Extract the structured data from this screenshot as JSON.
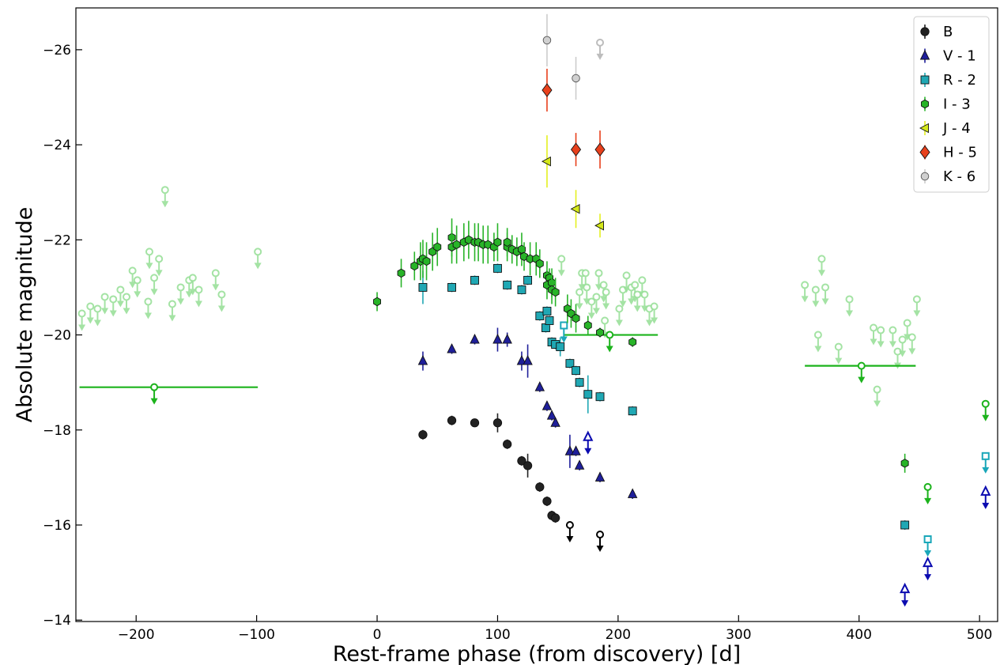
{
  "chart_data": {
    "type": "scatter",
    "title": "",
    "xlabel": "Rest-frame phase (from discovery) [d]",
    "ylabel": "Absolute magnitude",
    "xlim": [
      -250,
      515
    ],
    "ylim": [
      -13.97,
      -26.88
    ],
    "y_inverted": true,
    "xticks": [
      -200,
      -100,
      0,
      100,
      200,
      300,
      400,
      500
    ],
    "yticks": [
      -14,
      -16,
      -18,
      -20,
      -22,
      -24,
      -26
    ],
    "xtick_labels": [
      "−200",
      "−100",
      "0",
      "100",
      "200",
      "300",
      "400",
      "500"
    ],
    "ytick_labels": [
      "−14",
      "−16",
      "−18",
      "−20",
      "−22",
      "−24",
      "−26"
    ],
    "grid": false,
    "legend_position": "top-right",
    "colors": {
      "B": "#222222",
      "V": "#1f1f9a",
      "R": "#20a8b4",
      "I": "#28b428",
      "J": "#d4e81a",
      "H": "#e8401c",
      "K": "#bdbdbd",
      "I_limit_faint": "#9be09b",
      "I_limit": "#1cb31c",
      "R_limit": "#1aa7b9",
      "V_limit": "#0b0bb0",
      "B_limit": "#000000"
    },
    "series": [
      {
        "name": "B",
        "marker": "circle",
        "points": [
          [
            38,
            -17.9,
            0.1
          ],
          [
            62,
            -18.2,
            0.1
          ],
          [
            81,
            -18.15,
            0.05
          ],
          [
            100,
            -18.15,
            0.2
          ],
          [
            108,
            -17.7,
            0.1
          ],
          [
            120,
            -17.35,
            0.1
          ],
          [
            125,
            -17.25,
            0.25
          ],
          [
            135,
            -16.8,
            0.1
          ],
          [
            141,
            -16.5,
            0.1
          ],
          [
            145,
            -16.2,
            0.1
          ],
          [
            148,
            -16.15,
            0.1
          ]
        ]
      },
      {
        "name": "V - 1",
        "marker": "triangle",
        "points": [
          [
            38,
            -19.45,
            0.2
          ],
          [
            62,
            -19.7,
            0.1
          ],
          [
            81,
            -19.9,
            0.1
          ],
          [
            100,
            -19.9,
            0.25
          ],
          [
            108,
            -19.9,
            0.15
          ],
          [
            120,
            -19.45,
            0.2
          ],
          [
            125,
            -19.45,
            0.35
          ],
          [
            135,
            -18.9,
            0.1
          ],
          [
            141,
            -18.5,
            0.1
          ],
          [
            145,
            -18.3,
            0.1
          ],
          [
            148,
            -18.15,
            0.1
          ],
          [
            160,
            -17.55,
            0.35
          ],
          [
            165,
            -17.55,
            0.1
          ],
          [
            168,
            -17.25,
            0.1
          ],
          [
            185,
            -17.0,
            0.1
          ],
          [
            212,
            -16.65,
            0.1
          ]
        ]
      },
      {
        "name": "R - 2",
        "marker": "square",
        "points": [
          [
            38,
            -21.0,
            0.35
          ],
          [
            62,
            -21.0,
            0.1
          ],
          [
            81,
            -21.15,
            0.1
          ],
          [
            100,
            -21.4,
            0.1
          ],
          [
            108,
            -21.05,
            0.1
          ],
          [
            120,
            -20.95,
            0.1
          ],
          [
            125,
            -21.15,
            0.1
          ],
          [
            135,
            -20.4,
            0.1
          ],
          [
            140,
            -20.15,
            0.1
          ],
          [
            141,
            -20.5,
            0.1
          ],
          [
            143,
            -20.3,
            0.1
          ],
          [
            145,
            -19.85,
            0.1
          ],
          [
            148,
            -19.8,
            0.1
          ],
          [
            152,
            -19.75,
            0.2
          ],
          [
            160,
            -19.4,
            0.1
          ],
          [
            165,
            -19.25,
            0.1
          ],
          [
            168,
            -19.0,
            0.1
          ],
          [
            175,
            -18.75,
            0.4
          ],
          [
            185,
            -18.7,
            0.1
          ],
          [
            212,
            -18.4,
            0.1
          ],
          [
            438,
            -16.0,
            0.1
          ]
        ]
      },
      {
        "name": "I - 3",
        "marker": "hexagon",
        "points": [
          [
            0,
            -20.7,
            0.2
          ],
          [
            20,
            -21.3,
            0.3
          ],
          [
            31,
            -21.45,
            0.3
          ],
          [
            36,
            -21.55,
            0.4
          ],
          [
            38,
            -21.6,
            0.4
          ],
          [
            41,
            -21.55,
            0.4
          ],
          [
            46,
            -21.75,
            0.4
          ],
          [
            50,
            -21.85,
            0.4
          ],
          [
            62,
            -22.05,
            0.4
          ],
          [
            62,
            -21.85,
            0.35
          ],
          [
            66,
            -21.9,
            0.4
          ],
          [
            72,
            -21.95,
            0.4
          ],
          [
            76,
            -22.0,
            0.4
          ],
          [
            81,
            -21.95,
            0.4
          ],
          [
            84,
            -21.95,
            0.4
          ],
          [
            88,
            -21.9,
            0.4
          ],
          [
            92,
            -21.9,
            0.4
          ],
          [
            97,
            -21.85,
            0.3
          ],
          [
            100,
            -21.95,
            0.4
          ],
          [
            108,
            -21.85,
            0.3
          ],
          [
            108,
            -21.95,
            0.3
          ],
          [
            112,
            -21.8,
            0.3
          ],
          [
            116,
            -21.75,
            0.3
          ],
          [
            120,
            -21.8,
            0.35
          ],
          [
            122,
            -21.65,
            0.3
          ],
          [
            127,
            -21.6,
            0.35
          ],
          [
            132,
            -21.6,
            0.35
          ],
          [
            135,
            -21.5,
            0.3
          ],
          [
            141,
            -21.25,
            0.3
          ],
          [
            141,
            -21.05,
            0.3
          ],
          [
            143,
            -21.2,
            0.2
          ],
          [
            145,
            -21.1,
            0.3
          ],
          [
            145,
            -20.95,
            0.3
          ],
          [
            148,
            -20.9,
            0.3
          ],
          [
            158,
            -20.55,
            0.3
          ],
          [
            161,
            -20.45,
            0.3
          ],
          [
            165,
            -20.35,
            0.3
          ],
          [
            175,
            -20.2,
            0.2
          ],
          [
            185,
            -20.05,
            0.1
          ],
          [
            212,
            -19.85,
            0.1
          ],
          [
            438,
            -17.3,
            0.2
          ]
        ]
      },
      {
        "name": "J - 4",
        "marker": "triangle-left",
        "points": [
          [
            141,
            -23.65,
            0.55
          ],
          [
            165,
            -22.65,
            0.4
          ],
          [
            185,
            -22.3,
            0.25
          ]
        ]
      },
      {
        "name": "H - 5",
        "marker": "diamond",
        "points": [
          [
            141,
            -25.15,
            0.45
          ],
          [
            165,
            -23.9,
            0.35
          ],
          [
            185,
            -23.9,
            0.4
          ]
        ]
      },
      {
        "name": "K - 6",
        "marker": "circle-small",
        "points": [
          [
            141,
            -26.2,
            0.55
          ],
          [
            165,
            -25.4,
            0.45
          ]
        ]
      }
    ],
    "upper_limits": [
      {
        "band": "I",
        "style": "faint",
        "points": [
          [
            -245,
            -20.45
          ],
          [
            -238,
            -20.6
          ],
          [
            -232,
            -20.55
          ],
          [
            -226,
            -20.8
          ],
          [
            -219,
            -20.75
          ],
          [
            -213,
            -20.95
          ],
          [
            -208,
            -20.8
          ],
          [
            -203,
            -21.35
          ],
          [
            -199,
            -21.15
          ],
          [
            -190,
            -20.7
          ],
          [
            -189,
            -21.75
          ],
          [
            -185,
            -21.2
          ],
          [
            -181,
            -21.6
          ],
          [
            -176,
            -23.05
          ],
          [
            -170,
            -20.65
          ],
          [
            -163,
            -21.0
          ],
          [
            -156,
            -21.15
          ],
          [
            -153,
            -21.2
          ],
          [
            -148,
            -20.95
          ],
          [
            -134,
            -21.3
          ],
          [
            -129,
            -20.85
          ],
          [
            -99,
            -21.75
          ],
          [
            153,
            -21.6
          ],
          [
            168,
            -20.9
          ],
          [
            170,
            -21.3
          ],
          [
            173,
            -21.3
          ],
          [
            174,
            -21.0
          ],
          [
            178,
            -20.7
          ],
          [
            182,
            -20.8
          ],
          [
            184,
            -21.3
          ],
          [
            188,
            -21.05
          ],
          [
            189,
            -20.3
          ],
          [
            190,
            -20.9
          ],
          [
            201,
            -20.55
          ],
          [
            204,
            -20.95
          ],
          [
            207,
            -21.25
          ],
          [
            211,
            -21.0
          ],
          [
            214,
            -21.05
          ],
          [
            216,
            -20.85
          ],
          [
            220,
            -21.15
          ],
          [
            222,
            -20.85
          ],
          [
            226,
            -20.55
          ],
          [
            230,
            -20.6
          ],
          [
            355,
            -21.05
          ],
          [
            364,
            -20.95
          ],
          [
            366,
            -20.0
          ],
          [
            369,
            -21.6
          ],
          [
            372,
            -21.0
          ],
          [
            383,
            -19.75
          ],
          [
            392,
            -20.75
          ],
          [
            412,
            -20.15
          ],
          [
            415,
            -18.85
          ],
          [
            418,
            -20.1
          ],
          [
            428,
            -20.1
          ],
          [
            432,
            -19.65
          ],
          [
            436,
            -19.9
          ],
          [
            440,
            -20.25
          ],
          [
            444,
            -19.95
          ],
          [
            448,
            -20.75
          ]
        ]
      },
      {
        "band": "I",
        "style": "binned",
        "points": [
          [
            -185,
            -18.9,
            -247,
            -99
          ],
          [
            193,
            -20.0,
            155,
            233
          ],
          [
            402,
            -19.35,
            355,
            447
          ]
        ]
      },
      {
        "band": "I",
        "style": "solid",
        "points": [
          [
            457,
            -16.8
          ],
          [
            505,
            -18.55
          ]
        ]
      },
      {
        "band": "R",
        "style": "solid",
        "points": [
          [
            155,
            -20.2
          ],
          [
            457,
            -15.7
          ],
          [
            505,
            -17.45
          ]
        ]
      },
      {
        "band": "V",
        "style": "solid",
        "points": [
          [
            175,
            -17.85
          ],
          [
            438,
            -14.65
          ],
          [
            457,
            -15.2
          ],
          [
            505,
            -16.7
          ]
        ]
      },
      {
        "band": "B",
        "style": "solid",
        "points": [
          [
            160,
            -16.0
          ],
          [
            185,
            -15.8
          ]
        ]
      },
      {
        "band": "K",
        "style": "solid",
        "points": [
          [
            185,
            -26.15
          ]
        ]
      }
    ]
  }
}
